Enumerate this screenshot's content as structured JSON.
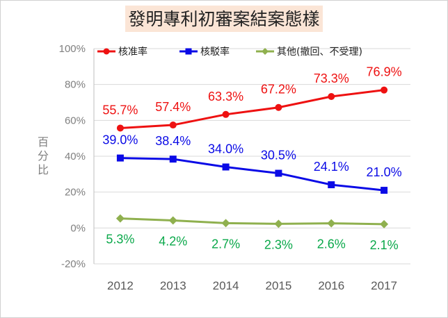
{
  "colors": {
    "approval": "#ee1111",
    "rejection": "#0a0ae6",
    "other_line": "#8fb04e",
    "other_label": "#0aa84a",
    "grid": "#d9d9d9",
    "axis": "#bfbfbf",
    "title_bg": "#fbe5d6"
  },
  "chart_data": {
    "type": "line",
    "title": "發明專利初審案結案態樣",
    "ylabel": "百分比",
    "xlabel": "",
    "categories": [
      "2012",
      "2013",
      "2014",
      "2015",
      "2016",
      "2017"
    ],
    "ylim": [
      -20,
      100
    ],
    "yticks": [
      -20,
      0,
      20,
      40,
      60,
      80,
      100
    ],
    "ytick_labels": [
      "-20%",
      "0%",
      "20%",
      "40%",
      "60%",
      "80%",
      "100%"
    ],
    "grid": true,
    "legend_position": "top",
    "series": [
      {
        "key": "approval",
        "name": "核准率",
        "marker": "circle",
        "label_position": "above",
        "values": [
          55.7,
          57.4,
          63.3,
          67.2,
          73.3,
          76.9
        ],
        "labels": [
          "55.7%",
          "57.4%",
          "63.3%",
          "67.2%",
          "73.3%",
          "76.9%"
        ]
      },
      {
        "key": "rejection",
        "name": "核駁率",
        "marker": "square",
        "label_position": "above",
        "values": [
          39.0,
          38.4,
          34.0,
          30.5,
          24.1,
          21.0
        ],
        "labels": [
          "39.0%",
          "38.4%",
          "34.0%",
          "30.5%",
          "24.1%",
          "21.0%"
        ]
      },
      {
        "key": "other",
        "name": "其他(撤回、不受理)",
        "marker": "diamond",
        "label_position": "below",
        "values": [
          5.3,
          4.2,
          2.7,
          2.3,
          2.6,
          2.1
        ],
        "labels": [
          "5.3%",
          "4.2%",
          "2.7%",
          "2.3%",
          "2.6%",
          "2.1%"
        ]
      }
    ]
  }
}
